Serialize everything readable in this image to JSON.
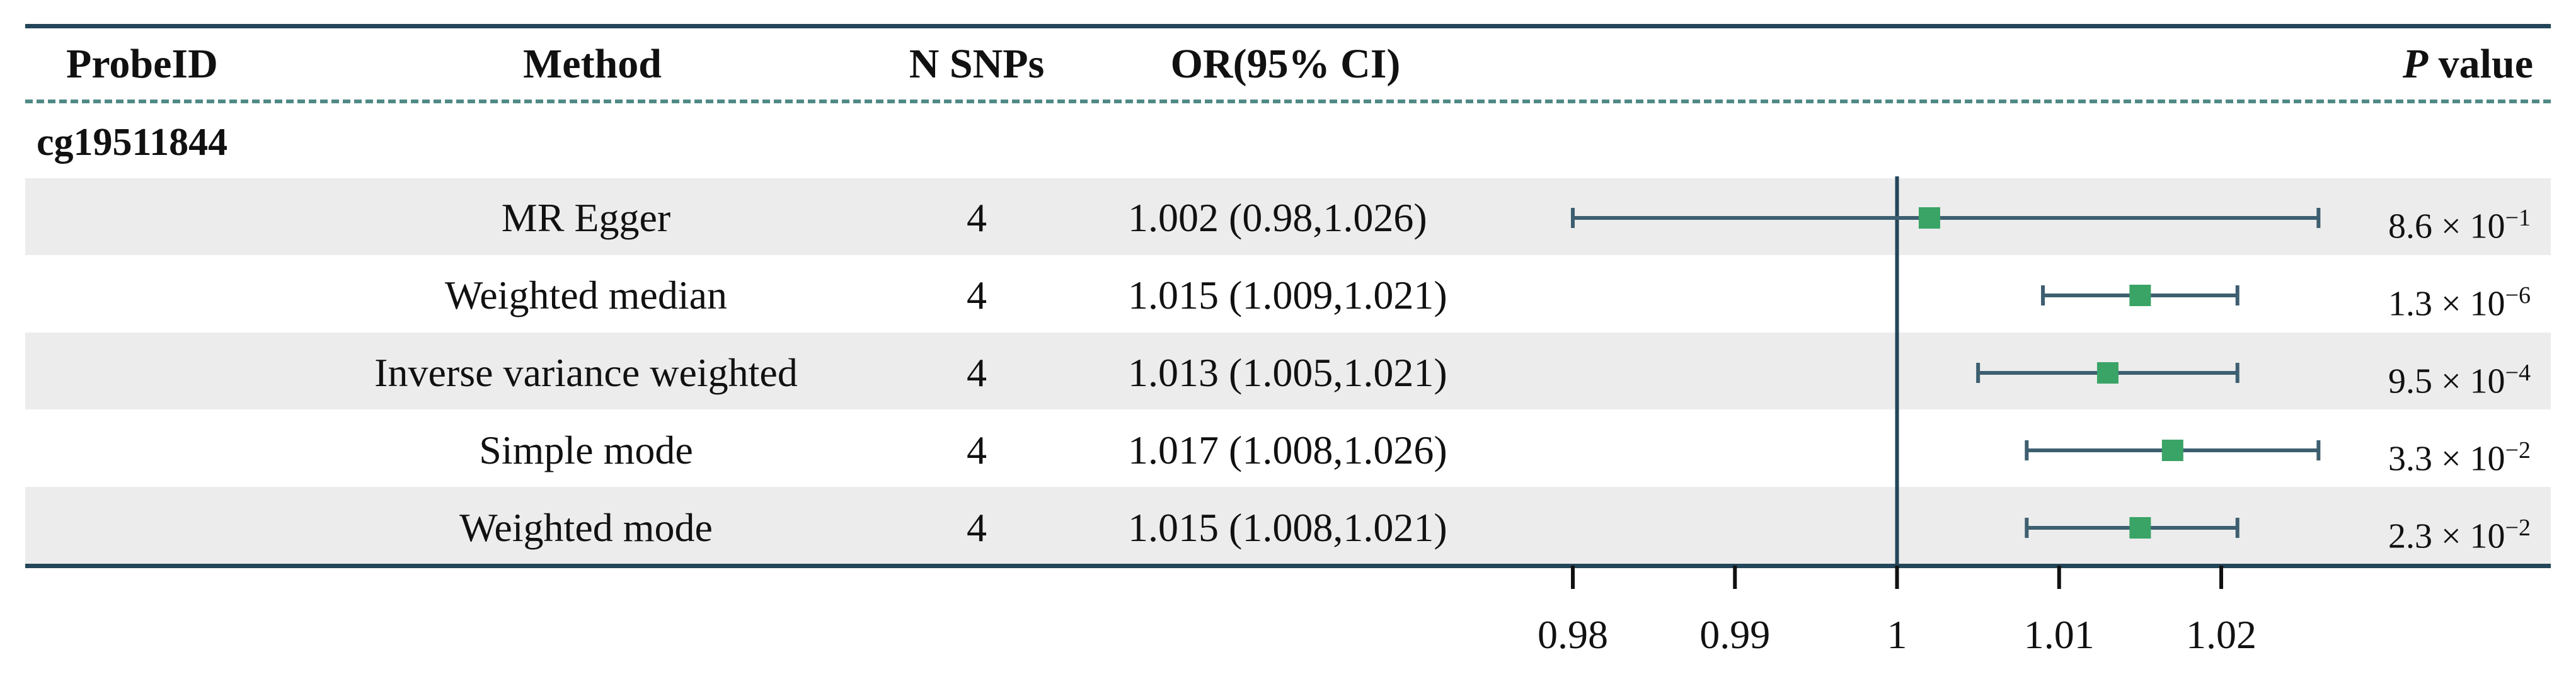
{
  "header": {
    "col_probe": "ProbeID",
    "col_method": "Method",
    "col_nsnps": "N SNPs",
    "col_or": "OR(95% CI)",
    "col_p_italic": "P",
    "col_p_rest": " value"
  },
  "probe_id": "cg19511844",
  "rows": [
    {
      "method": "MR Egger",
      "nsnps": "4",
      "or_text": "1.002 (0.98,1.026)",
      "p_mant": "8.6 × 10",
      "p_exp": "−1"
    },
    {
      "method": "Weighted median",
      "nsnps": "4",
      "or_text": "1.015 (1.009,1.021)",
      "p_mant": "1.3 × 10",
      "p_exp": "−6"
    },
    {
      "method": "Inverse variance weighted",
      "nsnps": "4",
      "or_text": "1.013 (1.005,1.021)",
      "p_mant": "9.5 × 10",
      "p_exp": "−4"
    },
    {
      "method": "Simple mode",
      "nsnps": "4",
      "or_text": "1.017 (1.008,1.026)",
      "p_mant": "3.3 × 10",
      "p_exp": "−2"
    },
    {
      "method": "Weighted mode",
      "nsnps": "4",
      "or_text": "1.015 (1.008,1.021)",
      "p_mant": "2.3 × 10",
      "p_exp": "−2"
    }
  ],
  "colors": {
    "point": "#3aa366",
    "whisker": "#3d5f70",
    "rule": "#24465a",
    "dash": "#4f8a86",
    "band": "#ececec"
  },
  "chart_data": {
    "type": "forest",
    "reference_line": 1,
    "xlim": [
      0.98,
      1.02
    ],
    "xticks": [
      0.98,
      0.99,
      1,
      1.01,
      1.02
    ],
    "tick_labels": [
      "0.98",
      "0.99",
      "1",
      "1.01",
      "1.02"
    ],
    "points": [
      {
        "label": "MR Egger",
        "or": 1.002,
        "lo": 0.98,
        "hi": 1.026
      },
      {
        "label": "Weighted median",
        "or": 1.015,
        "lo": 1.009,
        "hi": 1.021
      },
      {
        "label": "Inverse variance weighted",
        "or": 1.013,
        "lo": 1.005,
        "hi": 1.021
      },
      {
        "label": "Simple mode",
        "or": 1.017,
        "lo": 1.008,
        "hi": 1.026
      },
      {
        "label": "Weighted mode",
        "or": 1.015,
        "lo": 1.008,
        "hi": 1.021
      }
    ]
  }
}
